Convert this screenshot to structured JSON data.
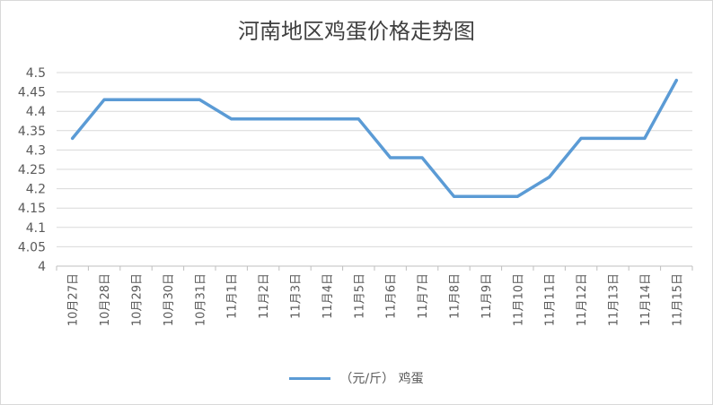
{
  "chart_data": {
    "type": "line",
    "title": "河南地区鸡蛋价格走势图",
    "categories": [
      "10月27日",
      "10月28日",
      "10月29日",
      "10月30日",
      "10月31日",
      "11月1日",
      "11月2日",
      "11月3日",
      "11月4日",
      "11月5日",
      "11月6日",
      "11月7日",
      "11月8日",
      "11月9日",
      "11月10日",
      "11月11日",
      "11月12日",
      "11月13日",
      "11月14日",
      "11月15日"
    ],
    "series": [
      {
        "name": "（元/斤） 鸡蛋",
        "color": "#5b9bd5",
        "values": [
          4.33,
          4.43,
          4.43,
          4.43,
          4.43,
          4.38,
          4.38,
          4.38,
          4.38,
          4.38,
          4.28,
          4.28,
          4.18,
          4.18,
          4.18,
          4.23,
          4.33,
          4.33,
          4.33,
          4.48
        ]
      }
    ],
    "ylim": [
      4,
      4.5
    ],
    "yticks": [
      "4",
      "4.05",
      "4.1",
      "4.15",
      "4.2",
      "4.25",
      "4.3",
      "4.35",
      "4.4",
      "4.45",
      "4.5"
    ],
    "grid": true,
    "legend": "bottom"
  }
}
